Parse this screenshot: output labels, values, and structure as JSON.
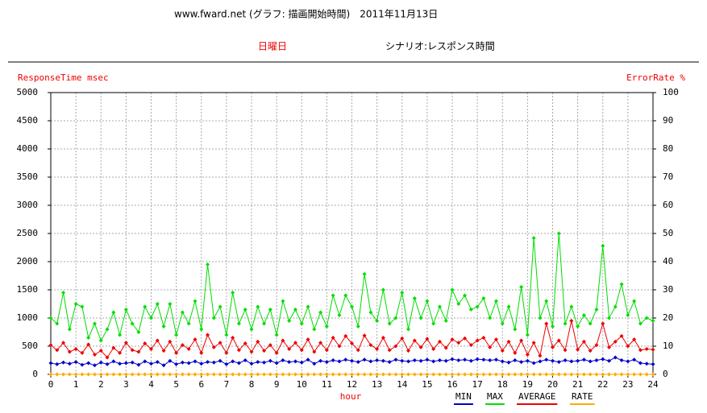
{
  "chart_data": {
    "type": "line",
    "title": "www.fward.net (グラフ: 描画開始時間)　2011年11月13日",
    "day_label": "日曜日",
    "scenario_label": "シナリオ:レスポンス時間",
    "ylabel": "ResponseTime msec",
    "y2label": "ErrorRate %",
    "xlabel": "hour",
    "x": [
      0,
      0.25,
      0.5,
      0.75,
      1,
      1.25,
      1.5,
      1.75,
      2,
      2.25,
      2.5,
      2.75,
      3,
      3.25,
      3.5,
      3.75,
      4,
      4.25,
      4.5,
      4.75,
      5,
      5.25,
      5.5,
      5.75,
      6,
      6.25,
      6.5,
      6.75,
      7,
      7.25,
      7.5,
      7.75,
      8,
      8.25,
      8.5,
      8.75,
      9,
      9.25,
      9.5,
      9.75,
      10,
      10.25,
      10.5,
      10.75,
      11,
      11.25,
      11.5,
      11.75,
      12,
      12.25,
      12.5,
      12.75,
      13,
      13.25,
      13.5,
      13.75,
      14,
      14.25,
      14.5,
      14.75,
      15,
      15.25,
      15.5,
      15.75,
      16,
      16.25,
      16.5,
      16.75,
      17,
      17.25,
      17.5,
      17.75,
      18,
      18.25,
      18.5,
      18.75,
      19,
      19.25,
      19.5,
      19.75,
      20,
      20.25,
      20.5,
      20.75,
      21,
      21.25,
      21.5,
      21.75,
      22,
      22.25,
      22.5,
      22.75,
      23,
      23.25,
      23.5,
      23.75,
      24
    ],
    "series": [
      {
        "name": "MIN",
        "color": "#0000cc",
        "values": [
          200,
          180,
          210,
          190,
          220,
          170,
          200,
          160,
          210,
          180,
          230,
          190,
          200,
          210,
          170,
          230,
          190,
          220,
          160,
          240,
          180,
          210,
          200,
          230,
          190,
          220,
          210,
          240,
          180,
          230,
          200,
          250,
          190,
          220,
          210,
          240,
          200,
          250,
          220,
          230,
          210,
          260,
          190,
          240,
          220,
          250,
          230,
          260,
          240,
          220,
          260,
          230,
          250,
          240,
          220,
          260,
          240,
          230,
          250,
          240,
          260,
          230,
          250,
          240,
          270,
          250,
          260,
          240,
          270,
          260,
          250,
          260,
          230,
          210,
          250,
          220,
          240,
          200,
          230,
          260,
          240,
          220,
          250,
          230,
          240,
          260,
          230,
          250,
          270,
          240,
          300,
          250,
          230,
          260,
          200,
          190,
          180
        ]
      },
      {
        "name": "MAX",
        "color": "#00dd00",
        "values": [
          1000,
          900,
          1450,
          800,
          1250,
          1200,
          650,
          900,
          600,
          800,
          1100,
          700,
          1150,
          900,
          750,
          1200,
          1000,
          1250,
          850,
          1250,
          700,
          1100,
          900,
          1300,
          800,
          1950,
          1000,
          1200,
          700,
          1450,
          900,
          1150,
          800,
          1200,
          900,
          1150,
          700,
          1300,
          950,
          1150,
          900,
          1200,
          800,
          1100,
          850,
          1400,
          1050,
          1400,
          1200,
          850,
          1780,
          1100,
          950,
          1500,
          900,
          1000,
          1450,
          800,
          1350,
          1000,
          1300,
          900,
          1200,
          950,
          1500,
          1250,
          1400,
          1150,
          1200,
          1350,
          1000,
          1300,
          900,
          1200,
          800,
          1550,
          700,
          2420,
          1000,
          1300,
          850,
          2500,
          900,
          1200,
          850,
          1050,
          900,
          1150,
          2280,
          1000,
          1200,
          1600,
          1050,
          1300,
          900,
          1000,
          950
        ]
      },
      {
        "name": "AVERAGE",
        "color": "#ee0000",
        "values": [
          520,
          430,
          560,
          400,
          450,
          380,
          530,
          350,
          420,
          300,
          470,
          380,
          560,
          430,
          400,
          550,
          450,
          600,
          420,
          580,
          380,
          520,
          450,
          620,
          380,
          700,
          480,
          560,
          380,
          650,
          430,
          550,
          400,
          580,
          420,
          520,
          380,
          600,
          450,
          560,
          430,
          620,
          400,
          560,
          430,
          650,
          500,
          680,
          550,
          430,
          690,
          520,
          450,
          650,
          430,
          500,
          640,
          420,
          600,
          480,
          630,
          450,
          580,
          470,
          620,
          560,
          640,
          520,
          600,
          650,
          480,
          620,
          420,
          580,
          380,
          600,
          350,
          560,
          330,
          900,
          480,
          600,
          430,
          950,
          440,
          580,
          420,
          520,
          900,
          480,
          580,
          680,
          500,
          620,
          430,
          450,
          440
        ]
      },
      {
        "name": "RATE",
        "color": "#ffaa00",
        "axis": "y2",
        "values": [
          0,
          0,
          0,
          0,
          0,
          0,
          0,
          0,
          0,
          0,
          0,
          0,
          0,
          0,
          0,
          0,
          0,
          0,
          0,
          0,
          0,
          0,
          0,
          0,
          0,
          0,
          0,
          0,
          0,
          0,
          0,
          0,
          0,
          0,
          0,
          0,
          0,
          0,
          0,
          0,
          0,
          0,
          0,
          0,
          0,
          0,
          0,
          0,
          0,
          0,
          0,
          0,
          0,
          0,
          0,
          0,
          0,
          0,
          0,
          0,
          0,
          0,
          0,
          0,
          0,
          0,
          0,
          0,
          0,
          0,
          0,
          0,
          0,
          0,
          0,
          0,
          0,
          0,
          0,
          0,
          0,
          0,
          0,
          0,
          0,
          0,
          0,
          0,
          0,
          0,
          0,
          0,
          0,
          0,
          0,
          0,
          0
        ]
      }
    ],
    "xlim": [
      0,
      24
    ],
    "xticks": [
      0,
      1,
      2,
      3,
      4,
      5,
      6,
      7,
      8,
      9,
      10,
      11,
      12,
      13,
      14,
      15,
      16,
      17,
      18,
      19,
      20,
      21,
      22,
      23,
      24
    ],
    "ylim": [
      0,
      5000
    ],
    "yticks": [
      0,
      500,
      1000,
      1500,
      2000,
      2500,
      3000,
      3500,
      4000,
      4500,
      5000
    ],
    "y2lim": [
      0,
      100
    ],
    "y2ticks": [
      0,
      10,
      20,
      30,
      40,
      50,
      60,
      70,
      80,
      90,
      100
    ],
    "grid": true
  }
}
